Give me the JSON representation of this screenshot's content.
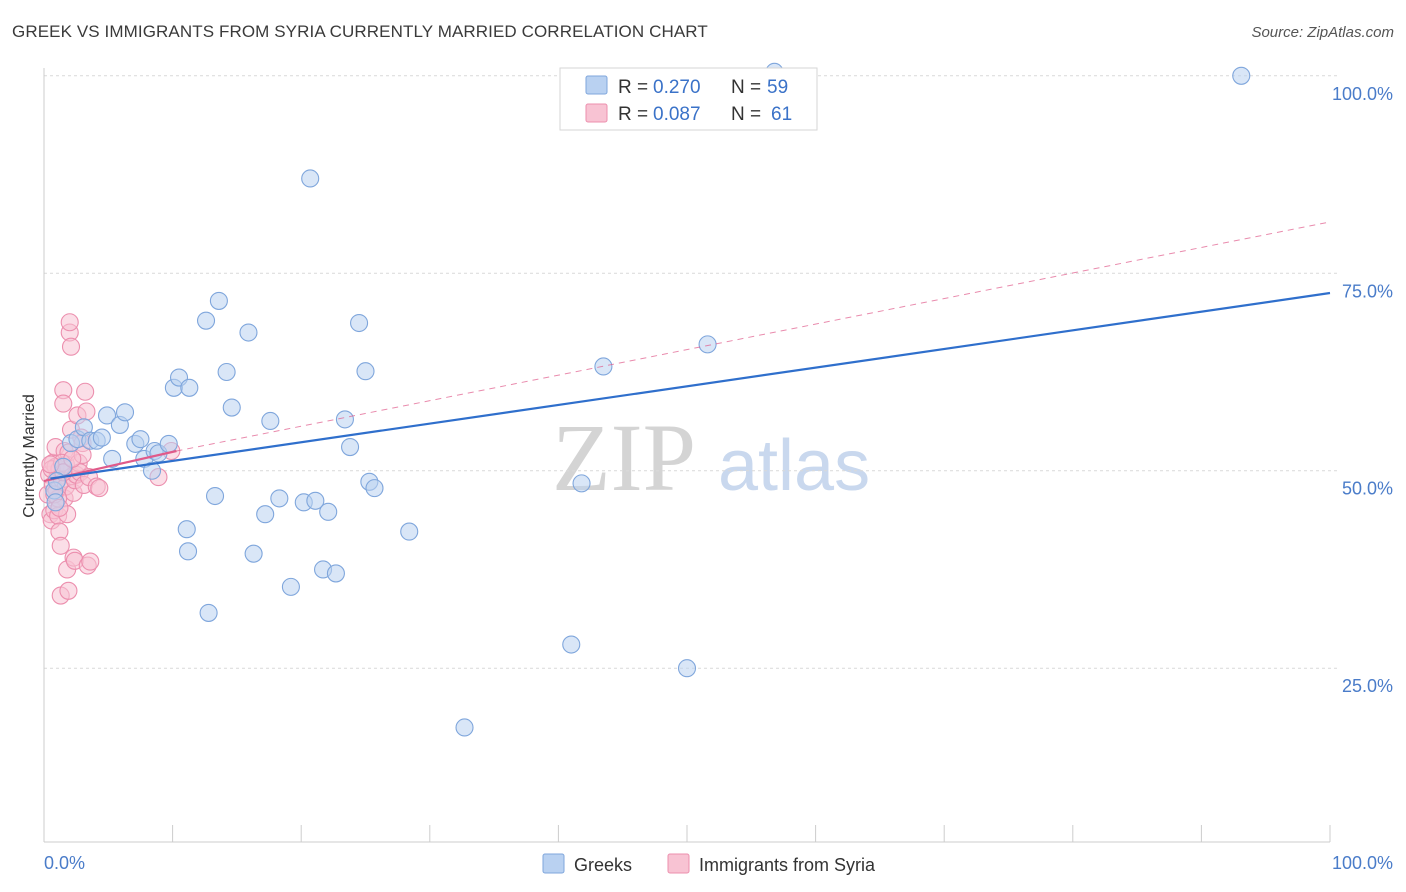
{
  "title": "GREEK VS IMMIGRANTS FROM SYRIA CURRENTLY MARRIED CORRELATION CHART",
  "source": "Source: ZipAtlas.com",
  "colors": {
    "greeks_fill": "#b9d1f1",
    "greeks_stroke": "#7fa6dc",
    "greeks_line": "#2f6fcc",
    "syria_fill": "#f8c3d3",
    "syria_stroke": "#ec8fae",
    "syria_line": "#e05a8a",
    "grid": "#d9d9d9",
    "tick_label": "#4a7cc9"
  },
  "legend": {
    "r_label": "R =",
    "n_label": "N =",
    "items": [
      {
        "r": "0.270",
        "n": "59"
      },
      {
        "r": "0.087",
        "n": "61"
      }
    ]
  },
  "bottom_legend": [
    "Greeks",
    "Immigrants from Syria"
  ],
  "watermark": {
    "zip": "ZIP",
    "atlas": "atlas"
  },
  "chart_data": {
    "type": "scatter",
    "title": "GREEK VS IMMIGRANTS FROM SYRIA CURRENTLY MARRIED CORRELATION CHART",
    "xlabel": "",
    "ylabel": "Currently Married",
    "xlim": [
      0,
      100
    ],
    "ylim": [
      3,
      102
    ],
    "x_tick_labels": [
      "0.0%",
      "100.0%"
    ],
    "y_ticks": [
      25,
      50,
      75,
      100
    ],
    "y_tick_labels": [
      "25.0%",
      "50.0%",
      "75.0%",
      "100.0%"
    ],
    "grid": true,
    "legend_position": "top-center",
    "series": [
      {
        "name": "Greeks",
        "r": 0.27,
        "n": 59,
        "trend": {
          "x0": 0.5,
          "y0": 49.0,
          "x1": 100,
          "y1": 72.5,
          "style": "solid"
        },
        "points": [
          [
            0.8,
            47.5
          ],
          [
            0.9,
            46.0
          ],
          [
            1.5,
            50.5
          ],
          [
            2.1,
            53.5
          ],
          [
            2.6,
            54.0
          ],
          [
            3.1,
            55.5
          ],
          [
            3.6,
            53.8
          ],
          [
            4.1,
            53.8
          ],
          [
            4.5,
            54.2
          ],
          [
            4.9,
            57.0
          ],
          [
            5.3,
            51.5
          ],
          [
            5.9,
            55.8
          ],
          [
            6.3,
            57.4
          ],
          [
            7.1,
            53.4
          ],
          [
            7.5,
            54.0
          ],
          [
            7.8,
            51.5
          ],
          [
            8.4,
            50.0
          ],
          [
            8.6,
            52.5
          ],
          [
            8.9,
            52.2
          ],
          [
            9.7,
            53.4
          ],
          [
            10.1,
            60.5
          ],
          [
            10.5,
            61.8
          ],
          [
            11.3,
            60.5
          ],
          [
            12.6,
            69.0
          ],
          [
            13.3,
            46.8
          ],
          [
            13.6,
            71.5
          ],
          [
            14.2,
            62.5
          ],
          [
            14.6,
            58.0
          ],
          [
            15.9,
            67.5
          ],
          [
            17.2,
            44.5
          ],
          [
            17.6,
            56.3
          ],
          [
            18.3,
            46.5
          ],
          [
            19.2,
            35.3
          ],
          [
            20.2,
            46.0
          ],
          [
            20.7,
            87.0
          ],
          [
            21.1,
            46.2
          ],
          [
            21.7,
            37.5
          ],
          [
            22.1,
            44.8
          ],
          [
            22.7,
            37.0
          ],
          [
            23.4,
            56.5
          ],
          [
            23.8,
            53.0
          ],
          [
            24.5,
            68.7
          ],
          [
            25.0,
            62.6
          ],
          [
            25.3,
            48.6
          ],
          [
            25.7,
            47.8
          ],
          [
            28.4,
            42.3
          ],
          [
            11.1,
            42.6
          ],
          [
            11.2,
            39.8
          ],
          [
            12.8,
            32.0
          ],
          [
            16.3,
            39.5
          ],
          [
            32.7,
            17.5
          ],
          [
            41.0,
            28.0
          ],
          [
            41.8,
            48.4
          ],
          [
            43.5,
            63.2
          ],
          [
            50.0,
            25.0
          ],
          [
            51.6,
            66.0
          ],
          [
            56.8,
            100.5
          ],
          [
            93.1,
            100.0
          ],
          [
            1.0,
            48.7
          ]
        ]
      },
      {
        "name": "Immigrants from Syria",
        "r": 0.087,
        "n": 61,
        "trend": {
          "x0": 0,
          "y0": 48.7,
          "x1": 10.3,
          "y1": 52.5,
          "style": "solid"
        },
        "trend_extension": {
          "x0": 10.3,
          "y0": 52.5,
          "x1": 100,
          "y1": 81.5,
          "style": "dashed"
        },
        "points": [
          [
            0.3,
            47.0
          ],
          [
            0.4,
            49.5
          ],
          [
            0.5,
            44.5
          ],
          [
            0.6,
            43.7
          ],
          [
            0.7,
            48.2
          ],
          [
            0.7,
            51.0
          ],
          [
            0.8,
            45.0
          ],
          [
            0.9,
            53.0
          ],
          [
            0.9,
            50.5
          ],
          [
            1.0,
            49.0
          ],
          [
            1.0,
            47.5
          ],
          [
            1.1,
            44.3
          ],
          [
            1.2,
            42.3
          ],
          [
            1.2,
            50.2
          ],
          [
            1.3,
            40.5
          ],
          [
            1.3,
            34.2
          ],
          [
            1.4,
            48.9
          ],
          [
            1.5,
            60.2
          ],
          [
            1.5,
            58.5
          ],
          [
            1.6,
            52.5
          ],
          [
            1.6,
            46.5
          ],
          [
            1.7,
            48.0
          ],
          [
            1.7,
            50.8
          ],
          [
            1.8,
            44.5
          ],
          [
            1.8,
            37.5
          ],
          [
            1.9,
            34.8
          ],
          [
            1.9,
            52.3
          ],
          [
            2.0,
            67.5
          ],
          [
            2.0,
            68.8
          ],
          [
            2.1,
            65.7
          ],
          [
            2.1,
            55.2
          ],
          [
            2.2,
            49.3
          ],
          [
            2.3,
            47.2
          ],
          [
            2.3,
            39.0
          ],
          [
            2.4,
            38.6
          ],
          [
            2.4,
            48.8
          ],
          [
            2.5,
            49.5
          ],
          [
            2.6,
            57.0
          ],
          [
            2.7,
            51.0
          ],
          [
            2.8,
            49.8
          ],
          [
            2.9,
            54.2
          ],
          [
            3.0,
            53.5
          ],
          [
            3.0,
            52.0
          ],
          [
            3.1,
            48.2
          ],
          [
            3.2,
            60.0
          ],
          [
            3.3,
            57.5
          ],
          [
            3.4,
            38.0
          ],
          [
            3.5,
            49.2
          ],
          [
            3.6,
            38.5
          ],
          [
            4.1,
            48.0
          ],
          [
            1.1,
            46.5
          ],
          [
            0.6,
            50.2
          ],
          [
            0.8,
            47.0
          ],
          [
            1.4,
            51.0
          ],
          [
            1.5,
            49.8
          ],
          [
            2.2,
            51.5
          ],
          [
            4.3,
            47.8
          ],
          [
            8.9,
            49.2
          ],
          [
            9.9,
            52.5
          ],
          [
            1.2,
            45.3
          ],
          [
            0.5,
            50.8
          ]
        ]
      }
    ]
  }
}
